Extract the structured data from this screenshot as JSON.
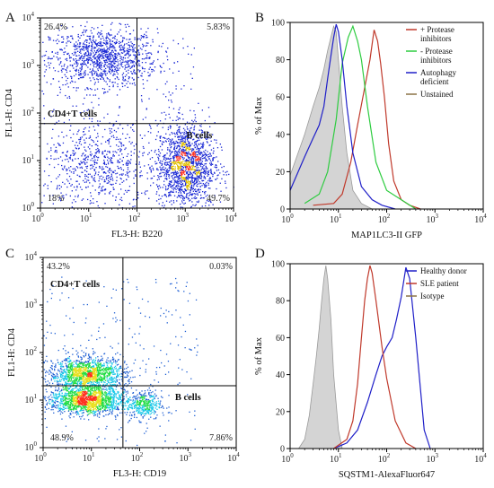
{
  "chart_data": [
    {
      "panel": "A",
      "type": "scatter",
      "xlabel": "FL3-H: B220",
      "ylabel": "FL1-H: CD4",
      "xlim": [
        1,
        10000
      ],
      "ylim": [
        1,
        10000
      ],
      "log": true,
      "x_ticks": [
        "10",
        "10",
        "10",
        "10",
        "10"
      ],
      "x_tick_exp": [
        "0",
        "1",
        "2",
        "3",
        "4"
      ],
      "y_ticks": [
        "10",
        "10",
        "10",
        "10",
        "10"
      ],
      "y_tick_exp": [
        "0",
        "1",
        "2",
        "3",
        "4"
      ],
      "quadrant_gate": {
        "x": 100,
        "y": 60
      },
      "quadrants": {
        "upper_left": "26.4%",
        "upper_right": "5.83%",
        "lower_left": "18%",
        "lower_right": "49.7%"
      },
      "gate_labels": [
        "CD4+T cells",
        "B cells"
      ],
      "populations": [
        {
          "x": 20,
          "y": 1500,
          "sx": 0.55,
          "sy": 0.3,
          "n": 1100
        },
        {
          "x": 1000,
          "y": 8,
          "sx": 0.3,
          "sy": 0.45,
          "n": 1500
        },
        {
          "x": 15,
          "y": 8,
          "sx": 0.55,
          "sy": 0.45,
          "n": 600
        }
      ],
      "dot_color": "#1a28d4",
      "density_colors": [
        "#e0c000",
        "#ff3020"
      ]
    },
    {
      "panel": "B",
      "type": "line",
      "xlabel": "MAP1LC3-II GFP",
      "ylabel": "% of Max",
      "xlim": [
        1,
        10000
      ],
      "ylim": [
        0,
        100
      ],
      "log_x": true,
      "x_ticks": [
        "10",
        "10",
        "10",
        "10",
        "10"
      ],
      "x_tick_exp": [
        "0",
        "1",
        "2",
        "3",
        "4"
      ],
      "y_ticks": [
        "0",
        "20",
        "40",
        "60",
        "80",
        "100"
      ],
      "legend": "top-right",
      "series": [
        {
          "name": "+ Protease inhibitors",
          "color": "#c0392b",
          "fill": false,
          "x": [
            3,
            8,
            12,
            18,
            25,
            35,
            45,
            55,
            65,
            75,
            90,
            110,
            140,
            200,
            300,
            500
          ],
          "y": [
            2,
            3,
            8,
            25,
            45,
            65,
            80,
            96,
            90,
            78,
            60,
            35,
            15,
            5,
            2,
            0
          ]
        },
        {
          "name": "- Protease inhibitors",
          "color": "#2ecc40",
          "fill": false,
          "x": [
            2,
            4,
            6,
            9,
            12,
            16,
            20,
            25,
            30,
            40,
            60,
            100,
            200,
            400
          ],
          "y": [
            3,
            8,
            20,
            48,
            78,
            92,
            98,
            90,
            80,
            55,
            25,
            10,
            5,
            0
          ]
        },
        {
          "name": "Autophagy deficient",
          "color": "#1f1fc8",
          "fill": false,
          "x": [
            1,
            2,
            3,
            4,
            5,
            6,
            7,
            8,
            9,
            10,
            12,
            15,
            20,
            30,
            50,
            80,
            150
          ],
          "y": [
            10,
            28,
            38,
            45,
            55,
            70,
            82,
            92,
            99,
            95,
            80,
            55,
            30,
            12,
            5,
            2,
            0
          ]
        },
        {
          "name": "Unstained",
          "color": "#8b7345",
          "fill": true,
          "x": [
            1,
            2,
            3,
            4,
            5,
            6,
            7,
            8,
            9,
            10,
            12,
            15,
            20,
            30,
            50
          ],
          "y": [
            18,
            40,
            55,
            65,
            75,
            85,
            92,
            98,
            95,
            80,
            55,
            30,
            10,
            3,
            0
          ]
        }
      ]
    },
    {
      "panel": "C",
      "type": "scatter",
      "xlabel": "FL3-H: CD19",
      "ylabel": "FL1-H: CD4",
      "xlim": [
        1,
        10000
      ],
      "ylim": [
        1,
        10000
      ],
      "log": true,
      "x_ticks": [
        "10",
        "10",
        "10",
        "10",
        "10"
      ],
      "x_tick_exp": [
        "0",
        "1",
        "2",
        "3",
        "4"
      ],
      "y_ticks": [
        "10",
        "10",
        "10",
        "10",
        "10"
      ],
      "y_tick_exp": [
        "0",
        "1",
        "2",
        "3",
        "4"
      ],
      "quadrant_gate": {
        "x": 45,
        "y": 20
      },
      "quadrants": {
        "upper_left": "43.2%",
        "upper_right": "0.03%",
        "lower_left": "48.9%",
        "lower_right": "7.86%"
      },
      "gate_labels": [
        "CD4+T cells",
        "B cells"
      ],
      "populations": [
        {
          "x": 8,
          "y": 35,
          "sx": 0.4,
          "sy": 0.18,
          "n": 1400
        },
        {
          "x": 8,
          "y": 10,
          "sx": 0.4,
          "sy": 0.14,
          "n": 1400
        },
        {
          "x": 120,
          "y": 8,
          "sx": 0.18,
          "sy": 0.15,
          "n": 350
        }
      ],
      "density_colors": [
        "#1f5fd4",
        "#19c8e8",
        "#22dd44",
        "#e8e020",
        "#ff3020"
      ]
    },
    {
      "panel": "D",
      "type": "line",
      "xlabel": "SQSTM1-AlexaFluor647",
      "ylabel": "% of Max",
      "xlim": [
        1,
        10000
      ],
      "ylim": [
        0,
        100
      ],
      "log_x": true,
      "x_ticks": [
        "10",
        "10",
        "10",
        "10",
        "10"
      ],
      "x_tick_exp": [
        "0",
        "1",
        "2",
        "3",
        "4"
      ],
      "y_ticks": [
        "0",
        "20",
        "40",
        "60",
        "80",
        "100"
      ],
      "legend": "top-right",
      "series": [
        {
          "name": "Healthy donor",
          "color": "#1f1fc8",
          "fill": false,
          "x": [
            8,
            15,
            25,
            40,
            60,
            80,
            100,
            130,
            160,
            200,
            250,
            300,
            400,
            600,
            800
          ],
          "y": [
            0,
            3,
            10,
            25,
            40,
            50,
            55,
            60,
            70,
            82,
            98,
            92,
            60,
            10,
            0
          ]
        },
        {
          "name": "SLE patient",
          "color": "#c0392b",
          "fill": false,
          "x": [
            8,
            15,
            20,
            25,
            30,
            35,
            40,
            45,
            50,
            60,
            80,
            100,
            150,
            250,
            400
          ],
          "y": [
            0,
            5,
            15,
            35,
            60,
            80,
            92,
            99,
            95,
            80,
            55,
            38,
            15,
            3,
            0
          ]
        },
        {
          "name": "Isotype",
          "color": "#8b7345",
          "fill": true,
          "x": [
            1.5,
            2,
            2.5,
            3,
            3.5,
            4,
            4.5,
            5,
            5.5,
            6,
            7,
            8,
            10,
            12
          ],
          "y": [
            0,
            5,
            18,
            35,
            50,
            65,
            80,
            92,
            99,
            92,
            70,
            40,
            10,
            0
          ]
        }
      ]
    }
  ]
}
